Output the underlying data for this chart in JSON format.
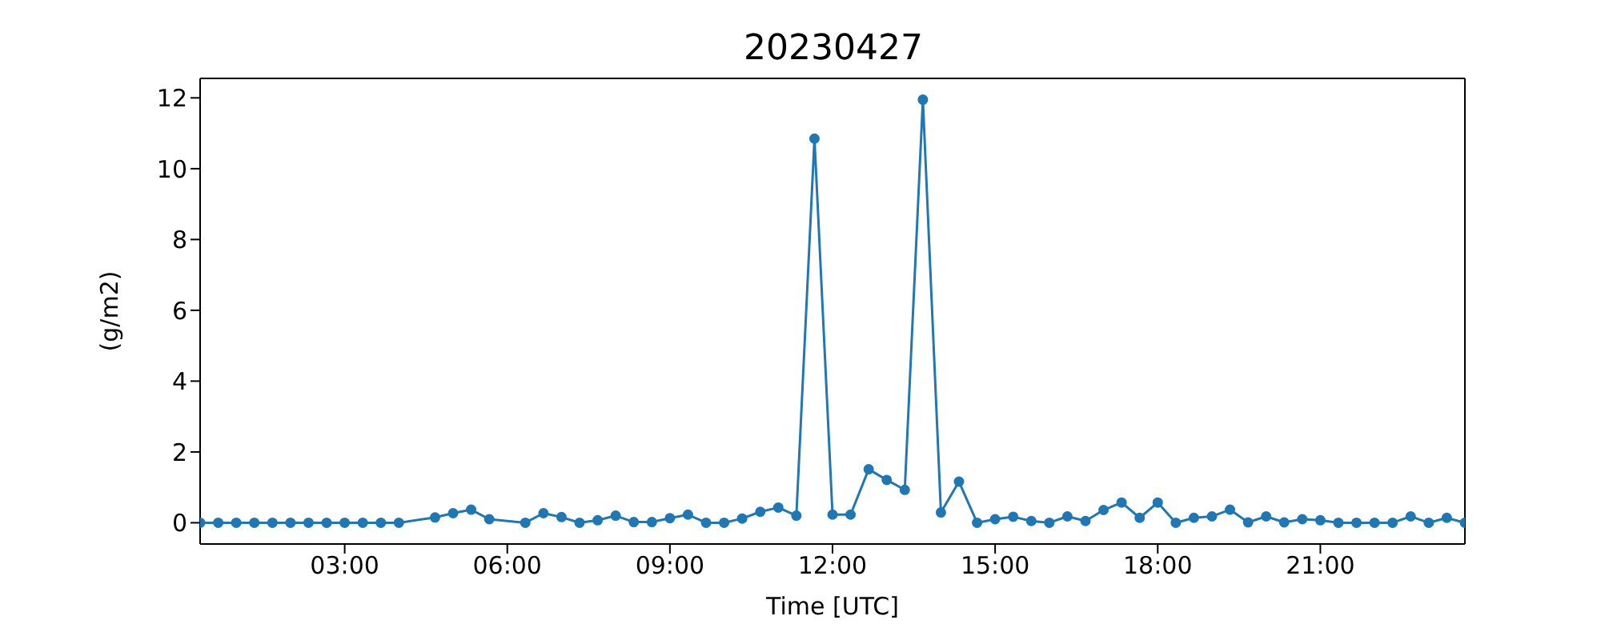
{
  "chart_data": {
    "type": "line",
    "title": "20230427",
    "xlabel": "Time [UTC]",
    "ylabel": "(g/m2)",
    "x": [
      0.333,
      0.667,
      1,
      1.333,
      1.667,
      2,
      2.333,
      2.667,
      3,
      3.333,
      3.667,
      4,
      4.667,
      5,
      5.333,
      5.667,
      6.333,
      6.667,
      7,
      7.333,
      7.667,
      8,
      8.333,
      8.667,
      9,
      9.333,
      9.667,
      10,
      10.333,
      10.667,
      11,
      11.333,
      11.667,
      12,
      12.333,
      12.667,
      13,
      13.333,
      13.667,
      14,
      14.333,
      14.667,
      15,
      15.333,
      15.667,
      16,
      16.333,
      16.667,
      17,
      17.333,
      17.667,
      18,
      18.333,
      18.667,
      19,
      19.333,
      19.667,
      20,
      20.333,
      20.667,
      21,
      21.333,
      21.667,
      22,
      22.333,
      22.667,
      23,
      23.333,
      23.667
    ],
    "series": [
      {
        "color": "#1f77b4",
        "values": [
          0,
          0,
          0,
          0,
          0,
          0,
          0,
          0,
          0,
          0,
          0,
          0,
          0.15,
          0.27,
          0.37,
          0.1,
          0,
          0.27,
          0.16,
          0,
          0.07,
          0.2,
          0.02,
          0.02,
          0.13,
          0.23,
          0,
          0,
          0.12,
          0.31,
          0.43,
          0.2,
          10.85,
          0.23,
          0.23,
          1.51,
          1.21,
          0.93,
          11.95,
          0.29,
          1.16,
          0,
          0.1,
          0.17,
          0.05,
          0,
          0.18,
          0.05,
          0.36,
          0.57,
          0.14,
          0.57,
          0,
          0.14,
          0.18,
          0.37,
          0.01,
          0.18,
          0.01,
          0.1,
          0.07,
          0,
          0,
          0,
          0,
          0.18,
          0,
          0.14,
          0
        ]
      }
    ],
    "xlim": [
      0.333,
      23.667
    ],
    "xticks": [
      {
        "value": 3,
        "label": "03:00"
      },
      {
        "value": 6,
        "label": "06:00"
      },
      {
        "value": 9,
        "label": "09:00"
      },
      {
        "value": 12,
        "label": "12:00"
      },
      {
        "value": 15,
        "label": "15:00"
      },
      {
        "value": 18,
        "label": "18:00"
      },
      {
        "value": 21,
        "label": "21:00"
      }
    ],
    "ylim": [
      -0.6,
      12.55
    ],
    "yticks": [
      0,
      2,
      4,
      6,
      8,
      10,
      12
    ],
    "marker": "circle",
    "line_style": "solid",
    "grid": false
  }
}
